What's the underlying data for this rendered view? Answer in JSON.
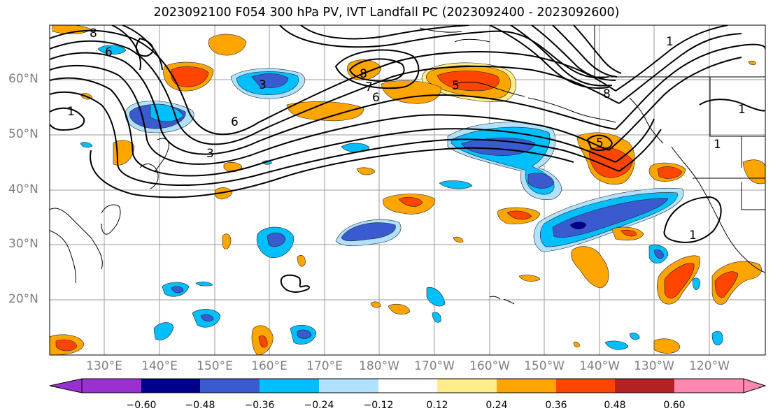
{
  "title": "2023092100 F054 300 hPa PV, IVT Landfall PC (2023092400 - 2023092600)",
  "lat_labels": [
    "60°N",
    "50°N",
    "40°N",
    "30°N",
    "20°N"
  ],
  "lon_labels": [
    "130°E",
    "140°E",
    "150°E",
    "160°E",
    "170°E",
    "180°W",
    "170°W",
    "160°W",
    "150°W",
    "140°W",
    "130°W",
    "120°W"
  ],
  "contour_labels": [
    "8",
    "6",
    "3",
    "7",
    "6",
    "1",
    "6",
    "3",
    "8",
    "5",
    "8",
    "1",
    "5",
    "1",
    "1",
    "1"
  ],
  "colorbar": {
    "ticks": [
      "−0.60",
      "−0.48",
      "−0.36",
      "−0.24",
      "−0.12",
      "0.12",
      "0.24",
      "0.36",
      "0.48",
      "0.60"
    ],
    "colors": [
      "#9b30d0",
      "#00008b",
      "#3a5bd0",
      "#00bfff",
      "#b0e2ff",
      "#ffffff",
      "#ffec8b",
      "#ffa500",
      "#ff4500",
      "#b22222",
      "#ff88b0"
    ]
  },
  "palette": {
    "neg_dark": "#3a5bd0",
    "neg_mid": "#00bfff",
    "neg_light": "#b0e2ff",
    "pos_light": "#ffec8b",
    "pos_mid": "#ffa500",
    "pos_dark": "#ff4500",
    "navy": "#00008b"
  }
}
